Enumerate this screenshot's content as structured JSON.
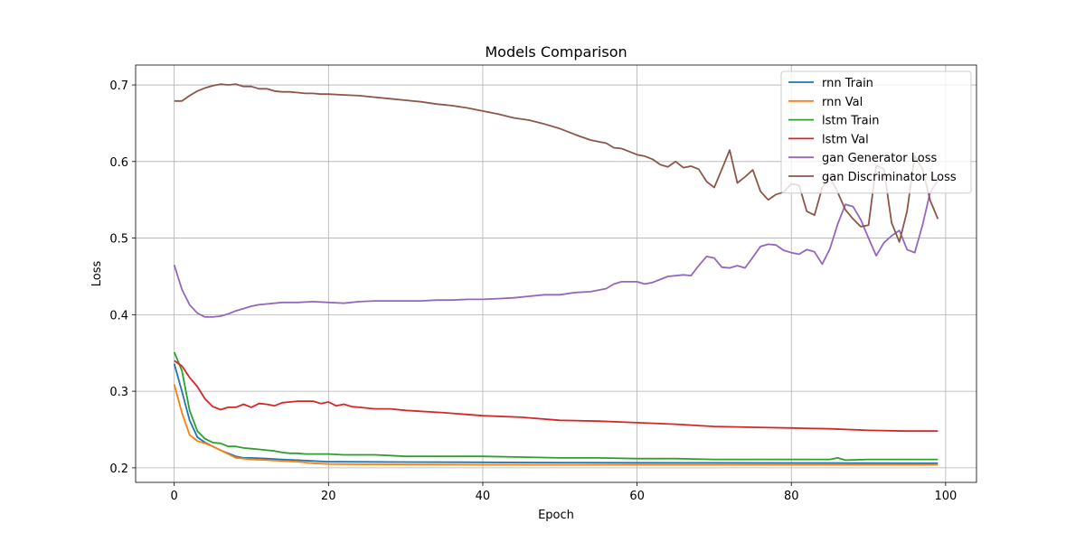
{
  "chart_data": {
    "type": "line",
    "title": "Models Comparison",
    "xlabel": "Epoch",
    "ylabel": "Loss",
    "xlim": [
      -5,
      104
    ],
    "ylim": [
      0.181,
      0.726
    ],
    "xticks": [
      0,
      20,
      40,
      60,
      80,
      100
    ],
    "yticks": [
      0.2,
      0.3,
      0.4,
      0.5,
      0.6,
      0.7
    ],
    "grid": true,
    "legend_position": "top-right",
    "series": [
      {
        "name": "rnn Train",
        "color": "#1f77b4",
        "points": [
          [
            0,
            0.336
          ],
          [
            1,
            0.3
          ],
          [
            2,
            0.262
          ],
          [
            3,
            0.24
          ],
          [
            4,
            0.233
          ],
          [
            5,
            0.228
          ],
          [
            6,
            0.223
          ],
          [
            7,
            0.219
          ],
          [
            8,
            0.215
          ],
          [
            9,
            0.213
          ],
          [
            10,
            0.213
          ],
          [
            12,
            0.212
          ],
          [
            14,
            0.211
          ],
          [
            16,
            0.21
          ],
          [
            18,
            0.209
          ],
          [
            20,
            0.208
          ],
          [
            25,
            0.2078
          ],
          [
            30,
            0.2075
          ],
          [
            40,
            0.2072
          ],
          [
            50,
            0.2068
          ],
          [
            60,
            0.2066
          ],
          [
            70,
            0.2065
          ],
          [
            80,
            0.2064
          ],
          [
            90,
            0.2063
          ],
          [
            99,
            0.206
          ]
        ]
      },
      {
        "name": "rnn Val",
        "color": "#ff7f0e",
        "points": [
          [
            0,
            0.309
          ],
          [
            1,
            0.272
          ],
          [
            2,
            0.243
          ],
          [
            3,
            0.235
          ],
          [
            4,
            0.232
          ],
          [
            5,
            0.228
          ],
          [
            6,
            0.223
          ],
          [
            7,
            0.218
          ],
          [
            8,
            0.213
          ],
          [
            9,
            0.212
          ],
          [
            10,
            0.211
          ],
          [
            12,
            0.21
          ],
          [
            14,
            0.209
          ],
          [
            16,
            0.208
          ],
          [
            18,
            0.206
          ],
          [
            20,
            0.205
          ],
          [
            25,
            0.2045
          ],
          [
            30,
            0.2043
          ],
          [
            40,
            0.204
          ],
          [
            50,
            0.204
          ],
          [
            60,
            0.204
          ],
          [
            70,
            0.204
          ],
          [
            80,
            0.204
          ],
          [
            90,
            0.204
          ],
          [
            99,
            0.204
          ]
        ]
      },
      {
        "name": "lstm Train",
        "color": "#2ca02c",
        "points": [
          [
            0,
            0.351
          ],
          [
            1,
            0.327
          ],
          [
            2,
            0.275
          ],
          [
            3,
            0.248
          ],
          [
            4,
            0.238
          ],
          [
            5,
            0.233
          ],
          [
            6,
            0.232
          ],
          [
            7,
            0.228
          ],
          [
            8,
            0.228
          ],
          [
            9,
            0.226
          ],
          [
            10,
            0.225
          ],
          [
            11,
            0.224
          ],
          [
            12,
            0.223
          ],
          [
            13,
            0.222
          ],
          [
            14,
            0.22
          ],
          [
            15,
            0.219
          ],
          [
            16,
            0.219
          ],
          [
            17,
            0.218
          ],
          [
            18,
            0.218
          ],
          [
            19,
            0.218
          ],
          [
            20,
            0.218
          ],
          [
            22,
            0.217
          ],
          [
            24,
            0.217
          ],
          [
            26,
            0.217
          ],
          [
            28,
            0.216
          ],
          [
            30,
            0.215
          ],
          [
            35,
            0.215
          ],
          [
            40,
            0.215
          ],
          [
            45,
            0.214
          ],
          [
            50,
            0.213
          ],
          [
            55,
            0.213
          ],
          [
            60,
            0.212
          ],
          [
            65,
            0.212
          ],
          [
            70,
            0.211
          ],
          [
            75,
            0.211
          ],
          [
            80,
            0.211
          ],
          [
            85,
            0.211
          ],
          [
            86,
            0.213
          ],
          [
            87,
            0.21
          ],
          [
            90,
            0.211
          ],
          [
            95,
            0.211
          ],
          [
            99,
            0.211
          ]
        ]
      },
      {
        "name": "lstm Val",
        "color": "#d62728",
        "points": [
          [
            0,
            0.34
          ],
          [
            1,
            0.333
          ],
          [
            2,
            0.318
          ],
          [
            3,
            0.306
          ],
          [
            4,
            0.29
          ],
          [
            5,
            0.28
          ],
          [
            6,
            0.276
          ],
          [
            7,
            0.279
          ],
          [
            8,
            0.279
          ],
          [
            9,
            0.283
          ],
          [
            10,
            0.279
          ],
          [
            11,
            0.284
          ],
          [
            12,
            0.283
          ],
          [
            13,
            0.281
          ],
          [
            14,
            0.285
          ],
          [
            15,
            0.286
          ],
          [
            16,
            0.287
          ],
          [
            17,
            0.287
          ],
          [
            18,
            0.287
          ],
          [
            19,
            0.284
          ],
          [
            20,
            0.286
          ],
          [
            21,
            0.281
          ],
          [
            22,
            0.283
          ],
          [
            23,
            0.28
          ],
          [
            24,
            0.279
          ],
          [
            26,
            0.277
          ],
          [
            28,
            0.277
          ],
          [
            30,
            0.275
          ],
          [
            35,
            0.272
          ],
          [
            40,
            0.268
          ],
          [
            45,
            0.266
          ],
          [
            50,
            0.262
          ],
          [
            55,
            0.261
          ],
          [
            60,
            0.259
          ],
          [
            65,
            0.257
          ],
          [
            70,
            0.254
          ],
          [
            75,
            0.253
          ],
          [
            80,
            0.252
          ],
          [
            85,
            0.251
          ],
          [
            90,
            0.249
          ],
          [
            95,
            0.248
          ],
          [
            99,
            0.248
          ]
        ]
      },
      {
        "name": "gan Generator Loss",
        "color": "#9467bd",
        "points": [
          [
            0,
            0.465
          ],
          [
            1,
            0.433
          ],
          [
            2,
            0.413
          ],
          [
            3,
            0.402
          ],
          [
            4,
            0.397
          ],
          [
            5,
            0.397
          ],
          [
            6,
            0.398
          ],
          [
            7,
            0.401
          ],
          [
            8,
            0.405
          ],
          [
            9,
            0.408
          ],
          [
            10,
            0.411
          ],
          [
            11,
            0.413
          ],
          [
            12,
            0.414
          ],
          [
            14,
            0.416
          ],
          [
            16,
            0.416
          ],
          [
            18,
            0.417
          ],
          [
            20,
            0.416
          ],
          [
            22,
            0.415
          ],
          [
            24,
            0.417
          ],
          [
            26,
            0.418
          ],
          [
            28,
            0.418
          ],
          [
            30,
            0.418
          ],
          [
            32,
            0.418
          ],
          [
            34,
            0.419
          ],
          [
            36,
            0.419
          ],
          [
            38,
            0.42
          ],
          [
            40,
            0.42
          ],
          [
            42,
            0.421
          ],
          [
            44,
            0.422
          ],
          [
            46,
            0.424
          ],
          [
            48,
            0.426
          ],
          [
            50,
            0.426
          ],
          [
            52,
            0.429
          ],
          [
            54,
            0.43
          ],
          [
            56,
            0.434
          ],
          [
            57,
            0.44
          ],
          [
            58,
            0.443
          ],
          [
            60,
            0.443
          ],
          [
            61,
            0.44
          ],
          [
            62,
            0.442
          ],
          [
            63,
            0.446
          ],
          [
            64,
            0.45
          ],
          [
            66,
            0.452
          ],
          [
            67,
            0.451
          ],
          [
            68,
            0.464
          ],
          [
            69,
            0.476
          ],
          [
            70,
            0.474
          ],
          [
            71,
            0.462
          ],
          [
            72,
            0.461
          ],
          [
            73,
            0.464
          ],
          [
            74,
            0.461
          ],
          [
            75,
            0.475
          ],
          [
            76,
            0.489
          ],
          [
            77,
            0.492
          ],
          [
            78,
            0.491
          ],
          [
            79,
            0.484
          ],
          [
            80,
            0.481
          ],
          [
            81,
            0.479
          ],
          [
            82,
            0.485
          ],
          [
            83,
            0.482
          ],
          [
            84,
            0.466
          ],
          [
            85,
            0.486
          ],
          [
            86,
            0.518
          ],
          [
            87,
            0.544
          ],
          [
            88,
            0.541
          ],
          [
            89,
            0.524
          ],
          [
            90,
            0.5
          ],
          [
            91,
            0.477
          ],
          [
            92,
            0.494
          ],
          [
            93,
            0.503
          ],
          [
            94,
            0.51
          ],
          [
            95,
            0.485
          ],
          [
            96,
            0.481
          ],
          [
            97,
            0.517
          ],
          [
            98,
            0.56
          ],
          [
            99,
            0.575
          ]
        ]
      },
      {
        "name": "gan Discriminator Loss",
        "color": "#8c564b",
        "points": [
          [
            0,
            0.679
          ],
          [
            1,
            0.679
          ],
          [
            2,
            0.686
          ],
          [
            3,
            0.692
          ],
          [
            4,
            0.696
          ],
          [
            5,
            0.699
          ],
          [
            6,
            0.701
          ],
          [
            7,
            0.7
          ],
          [
            8,
            0.701
          ],
          [
            9,
            0.698
          ],
          [
            10,
            0.698
          ],
          [
            11,
            0.695
          ],
          [
            12,
            0.695
          ],
          [
            13,
            0.692
          ],
          [
            14,
            0.691
          ],
          [
            15,
            0.691
          ],
          [
            16,
            0.69
          ],
          [
            17,
            0.689
          ],
          [
            18,
            0.689
          ],
          [
            19,
            0.688
          ],
          [
            20,
            0.688
          ],
          [
            22,
            0.687
          ],
          [
            24,
            0.686
          ],
          [
            26,
            0.684
          ],
          [
            28,
            0.682
          ],
          [
            30,
            0.68
          ],
          [
            32,
            0.678
          ],
          [
            34,
            0.675
          ],
          [
            36,
            0.673
          ],
          [
            38,
            0.67
          ],
          [
            40,
            0.666
          ],
          [
            42,
            0.662
          ],
          [
            44,
            0.657
          ],
          [
            46,
            0.654
          ],
          [
            48,
            0.649
          ],
          [
            50,
            0.643
          ],
          [
            52,
            0.635
          ],
          [
            54,
            0.628
          ],
          [
            56,
            0.624
          ],
          [
            57,
            0.618
          ],
          [
            58,
            0.617
          ],
          [
            60,
            0.609
          ],
          [
            61,
            0.607
          ],
          [
            62,
            0.603
          ],
          [
            63,
            0.596
          ],
          [
            64,
            0.593
          ],
          [
            65,
            0.6
          ],
          [
            66,
            0.592
          ],
          [
            67,
            0.594
          ],
          [
            68,
            0.59
          ],
          [
            69,
            0.574
          ],
          [
            70,
            0.566
          ],
          [
            71,
            0.59
          ],
          [
            72,
            0.615
          ],
          [
            73,
            0.572
          ],
          [
            74,
            0.58
          ],
          [
            75,
            0.589
          ],
          [
            76,
            0.561
          ],
          [
            77,
            0.55
          ],
          [
            78,
            0.557
          ],
          [
            79,
            0.56
          ],
          [
            80,
            0.571
          ],
          [
            81,
            0.569
          ],
          [
            82,
            0.535
          ],
          [
            83,
            0.53
          ],
          [
            84,
            0.566
          ],
          [
            85,
            0.58
          ],
          [
            86,
            0.56
          ],
          [
            87,
            0.537
          ],
          [
            88,
            0.525
          ],
          [
            89,
            0.515
          ],
          [
            90,
            0.517
          ],
          [
            91,
            0.595
          ],
          [
            92,
            0.59
          ],
          [
            93,
            0.52
          ],
          [
            94,
            0.495
          ],
          [
            95,
            0.535
          ],
          [
            96,
            0.607
          ],
          [
            97,
            0.59
          ],
          [
            98,
            0.549
          ],
          [
            99,
            0.525
          ]
        ]
      }
    ]
  }
}
